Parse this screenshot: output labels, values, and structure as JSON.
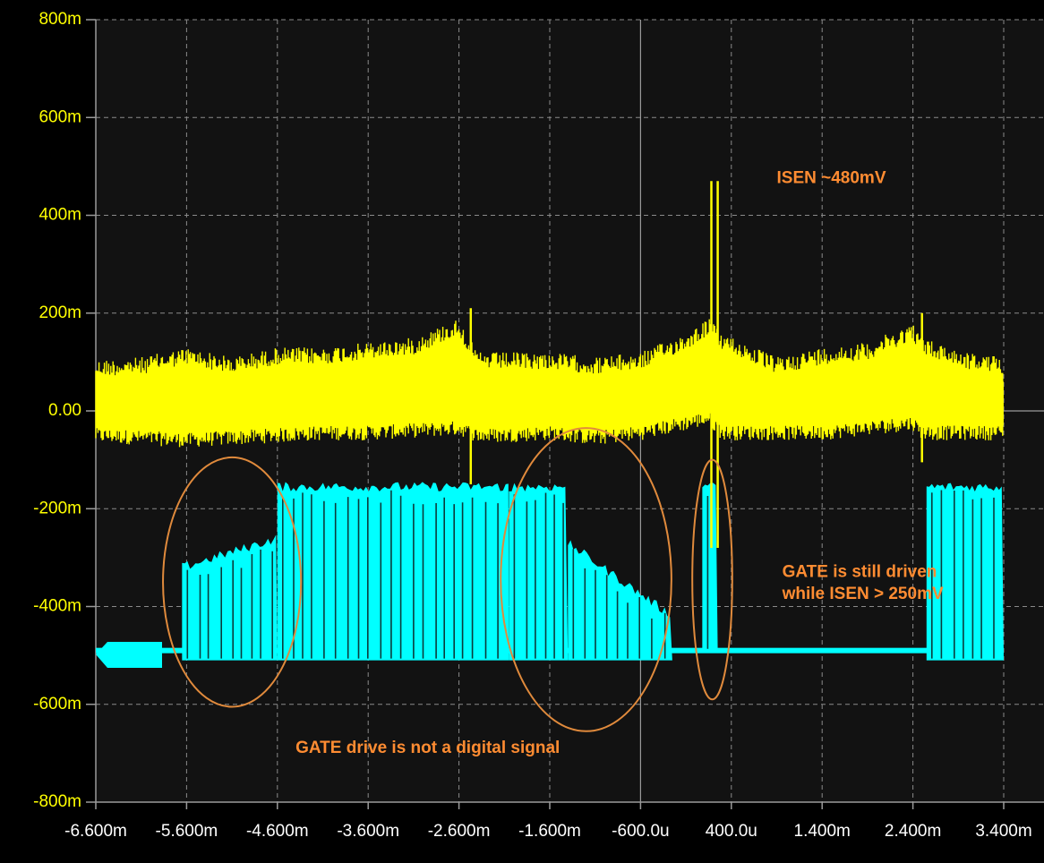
{
  "chart_data": {
    "type": "line",
    "background": "#121212",
    "grid": true,
    "grid_color": "#8a8a8a",
    "xlim": [
      -0.0066,
      0.0034
    ],
    "ylim": [
      -0.8,
      0.8
    ],
    "x_ticks": [
      {
        "value": -0.0066,
        "label": "-6.600m"
      },
      {
        "value": -0.0056,
        "label": "-5.600m"
      },
      {
        "value": -0.0046,
        "label": "-4.600m"
      },
      {
        "value": -0.0036,
        "label": "-3.600m"
      },
      {
        "value": -0.0026,
        "label": "-2.600m"
      },
      {
        "value": -0.0016,
        "label": "-1.600m"
      },
      {
        "value": -0.0006,
        "label": "-600.0u"
      },
      {
        "value": 0.0004,
        "label": "400.0u"
      },
      {
        "value": 0.0014,
        "label": "1.400m"
      },
      {
        "value": 0.0024,
        "label": "2.400m"
      },
      {
        "value": 0.0034,
        "label": "3.400m"
      }
    ],
    "y_ticks": [
      {
        "value": 0.8,
        "label": "800m"
      },
      {
        "value": 0.6,
        "label": "600m"
      },
      {
        "value": 0.4,
        "label": "400m"
      },
      {
        "value": 0.2,
        "label": "200m"
      },
      {
        "value": 0.0,
        "label": "0.00"
      },
      {
        "value": -0.2,
        "label": "-200m"
      },
      {
        "value": -0.4,
        "label": "-400m"
      },
      {
        "value": -0.6,
        "label": "-600m"
      },
      {
        "value": -0.8,
        "label": "-800m"
      }
    ],
    "series": [
      {
        "color": "#ffff00",
        "envelope": [
          {
            "x": -0.0066,
            "min": -0.065,
            "max": 0.105
          },
          {
            "x": -0.0061,
            "min": -0.07,
            "max": 0.11
          },
          {
            "x": -0.0056,
            "min": -0.075,
            "max": 0.13
          },
          {
            "x": -0.0051,
            "min": -0.07,
            "max": 0.11
          },
          {
            "x": -0.0046,
            "min": -0.065,
            "max": 0.13
          },
          {
            "x": -0.0041,
            "min": -0.06,
            "max": 0.13
          },
          {
            "x": -0.0036,
            "min": -0.06,
            "max": 0.14
          },
          {
            "x": -0.0031,
            "min": -0.055,
            "max": 0.15
          },
          {
            "x": -0.0026,
            "min": -0.05,
            "max": 0.19
          },
          {
            "x": -0.0024,
            "min": -0.065,
            "max": 0.12
          },
          {
            "x": -0.0021,
            "min": -0.065,
            "max": 0.12
          },
          {
            "x": -0.0016,
            "min": -0.06,
            "max": 0.12
          },
          {
            "x": -0.0011,
            "min": -0.07,
            "max": 0.11
          },
          {
            "x": -0.0006,
            "min": -0.06,
            "max": 0.12
          },
          {
            "x": -0.0001,
            "min": -0.04,
            "max": 0.16
          },
          {
            "x": 0.00015,
            "min": -0.03,
            "max": 0.19
          },
          {
            "x": 0.0003,
            "min": -0.06,
            "max": 0.16
          },
          {
            "x": 0.0009,
            "min": -0.06,
            "max": 0.11
          },
          {
            "x": 0.0014,
            "min": -0.06,
            "max": 0.13
          },
          {
            "x": 0.0019,
            "min": -0.05,
            "max": 0.14
          },
          {
            "x": 0.0024,
            "min": -0.04,
            "max": 0.18
          },
          {
            "x": 0.0025,
            "min": -0.06,
            "max": 0.15
          },
          {
            "x": 0.003,
            "min": -0.06,
            "max": 0.12
          },
          {
            "x": 0.0034,
            "min": -0.06,
            "max": 0.11
          }
        ],
        "spikes": [
          {
            "x": -0.00247,
            "min": -0.15,
            "max": 0.21
          },
          {
            "x": 0.00018,
            "min": -0.28,
            "max": 0.47
          },
          {
            "x": 0.00025,
            "min": -0.28,
            "max": 0.47
          },
          {
            "x": 0.0025,
            "min": -0.105,
            "max": 0.2
          }
        ]
      },
      {
        "color": "#00ffff",
        "regions": [
          {
            "x0": -0.00565,
            "x1": -0.0046,
            "min": -0.51,
            "max_start": -0.32,
            "max_end": -0.26,
            "peak": -0.24
          },
          {
            "x0": -0.0046,
            "x1": -0.00205,
            "min": -0.51,
            "max_start": -0.155,
            "max_end": -0.155,
            "peak": -0.155
          },
          {
            "x0": -0.00205,
            "x1": -0.0014,
            "min": -0.51,
            "max_start": -0.155,
            "max_end": -0.155,
            "peak": -0.155
          },
          {
            "x0": -0.0014,
            "x1": -0.00025,
            "min": -0.51,
            "max_start": -0.27,
            "max_end": -0.42,
            "peak": -0.26
          },
          {
            "x0": 8e-05,
            "x1": 0.00025,
            "min": -0.49,
            "max_start": -0.155,
            "max_end": -0.155,
            "peak": -0.14
          },
          {
            "x0": 0.00255,
            "x1": 0.0034,
            "min": -0.51,
            "max_start": -0.155,
            "max_end": -0.155,
            "peak": -0.15
          }
        ],
        "idle_level": -0.49
      }
    ],
    "annotations": [
      {
        "text": "ISEN ~480mV",
        "x": 0.0009,
        "y": 0.475
      },
      {
        "text": "GATE is still driven",
        "x": 0.00096,
        "y": -0.33
      },
      {
        "text": "while ISEN > 250mV",
        "x": 0.00096,
        "y": -0.375
      },
      {
        "text": "GATE drive is not a digital signal",
        "x": -0.0044,
        "y": -0.69
      }
    ],
    "highlight_ellipses": [
      {
        "cx": -0.0051,
        "cy": -0.35,
        "rx": 0.00076,
        "ry": 0.255,
        "color": "#e08a3c"
      },
      {
        "cx": -0.0012,
        "cy": -0.345,
        "rx": 0.00094,
        "ry": 0.31,
        "color": "#e08a3c"
      },
      {
        "cx": 0.00019,
        "cy": -0.345,
        "rx": 0.00022,
        "ry": 0.245,
        "color": "#e08a3c"
      }
    ]
  }
}
